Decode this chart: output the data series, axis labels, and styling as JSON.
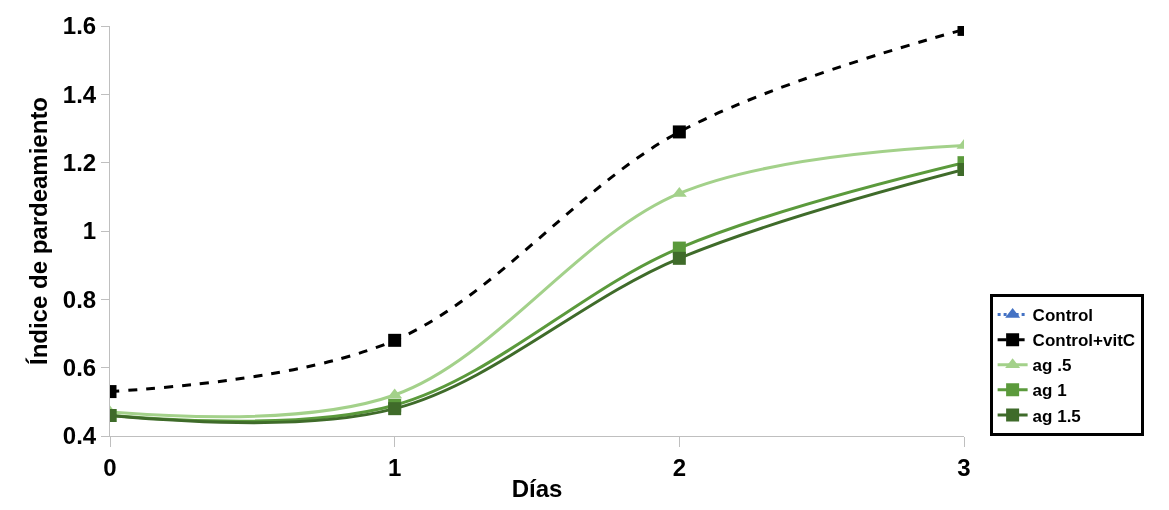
{
  "chart_data": {
    "type": "line",
    "xlabel": "Días",
    "ylabel": "Índice de pardeamiento",
    "x": [
      0,
      1,
      2,
      3
    ],
    "xlim": [
      0,
      3
    ],
    "xticks": [
      0,
      1,
      2,
      3
    ],
    "ylim": [
      0.4,
      1.6
    ],
    "yticks": [
      0.4,
      0.6,
      0.8,
      1,
      1.2,
      1.4,
      1.6
    ],
    "legend": "bottom right",
    "series": [
      {
        "name": "Control",
        "color": "#4472c4",
        "values": [
          null,
          null,
          null,
          null
        ],
        "marker": "triangle",
        "line_style": "dotted"
      },
      {
        "name": "Control+vitC",
        "color": "#000000",
        "values": [
          0.53,
          0.68,
          1.29,
          1.59
        ],
        "marker": "square",
        "line_style": "dashed"
      },
      {
        "name": "ag .5",
        "color": "#a3d18a",
        "values": [
          0.47,
          0.52,
          1.11,
          1.25
        ],
        "marker": "triangle",
        "line_style": "solid"
      },
      {
        "name": "ag 1",
        "color": "#5b9a3c",
        "values": [
          0.46,
          0.49,
          0.95,
          1.2
        ],
        "marker": "square",
        "line_style": "solid"
      },
      {
        "name": "ag 1.5",
        "color": "#3f6b2a",
        "values": [
          0.46,
          0.48,
          0.92,
          1.18
        ],
        "marker": "square",
        "line_style": "solid"
      }
    ]
  }
}
